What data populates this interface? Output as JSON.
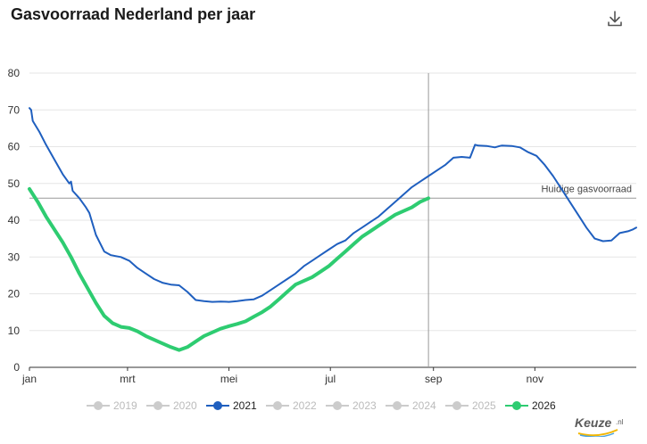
{
  "title": "Gasvoorraad Nederland per jaar",
  "icons": {
    "download": "download-icon",
    "brand": "keuze-logo"
  },
  "brand_text": "Keuze",
  "brand_suffix": ".nl",
  "colors": {
    "series_2021": "#1f5fbf",
    "series_2026": "#2ecc71",
    "inactive": "#cccccc",
    "reference_line": "#999999",
    "grid": "#e6e6e6"
  },
  "legend": [
    {
      "label": "2019",
      "active": false
    },
    {
      "label": "2020",
      "active": false
    },
    {
      "label": "2021",
      "active": true,
      "color": "#1f5fbf"
    },
    {
      "label": "2022",
      "active": false
    },
    {
      "label": "2023",
      "active": false
    },
    {
      "label": "2024",
      "active": false
    },
    {
      "label": "2025",
      "active": false
    },
    {
      "label": "2026",
      "active": true,
      "color": "#2ecc71"
    }
  ],
  "chart_data": {
    "type": "line",
    "title": "Gasvoorraad Nederland per jaar",
    "xlabel": "",
    "ylabel": "",
    "xlim": [
      0,
      365
    ],
    "ylim": [
      0,
      80
    ],
    "yticks": [
      0,
      10,
      20,
      30,
      40,
      50,
      60,
      70,
      80
    ],
    "xticks": [
      {
        "label": "jan",
        "day": 0
      },
      {
        "label": "mrt",
        "day": 59
      },
      {
        "label": "mei",
        "day": 120
      },
      {
        "label": "jul",
        "day": 181
      },
      {
        "label": "sep",
        "day": 243
      },
      {
        "label": "nov",
        "day": 304
      }
    ],
    "grid": true,
    "legend_position": "bottom",
    "reference_line": {
      "label": "Huidige gasvoorraad",
      "y": 46
    },
    "marker_line": {
      "x": 240
    },
    "series": [
      {
        "name": "2021",
        "color": "#1f5fbf",
        "x": [
          0,
          1,
          2,
          6,
          10,
          15,
          20,
          24,
          25,
          26,
          30,
          34,
          36,
          40,
          45,
          49,
          55,
          60,
          65,
          70,
          75,
          80,
          85,
          90,
          95,
          100,
          105,
          110,
          115,
          120,
          125,
          130,
          135,
          140,
          145,
          150,
          155,
          160,
          165,
          170,
          175,
          180,
          185,
          190,
          195,
          200,
          205,
          210,
          215,
          220,
          225,
          230,
          235,
          240,
          245,
          250,
          255,
          260,
          265,
          268,
          270,
          275,
          280,
          283,
          284,
          290,
          295,
          300,
          305,
          310,
          315,
          320,
          325,
          330,
          335,
          340,
          345,
          350,
          355,
          360,
          363,
          365
        ],
        "y": [
          70.5,
          70,
          67,
          64,
          60.5,
          56.5,
          52.5,
          50,
          50.5,
          48,
          46,
          43.5,
          42,
          36,
          31.5,
          30.5,
          30,
          29,
          27,
          25.5,
          24,
          23,
          22.5,
          22.3,
          20.5,
          18.3,
          18,
          17.8,
          17.9,
          17.8,
          18,
          18.3,
          18.5,
          19.5,
          21,
          22.5,
          24,
          25.5,
          27.5,
          29,
          30.5,
          32,
          33.5,
          34.5,
          36.5,
          38,
          39.5,
          41,
          43,
          45,
          47,
          49,
          50.5,
          52,
          53.5,
          55,
          57,
          57.2,
          57,
          60.5,
          60.3,
          60.2,
          59.8,
          60.2,
          60.3,
          60.2,
          59.8,
          58.5,
          57.5,
          55,
          52,
          48.5,
          45,
          41.5,
          38,
          35,
          34.3,
          34.5,
          36.5,
          37,
          37.5,
          38
        ]
      },
      {
        "name": "2026",
        "color": "#2ecc71",
        "x": [
          0,
          5,
          10,
          15,
          20,
          25,
          30,
          35,
          40,
          45,
          50,
          55,
          60,
          65,
          70,
          75,
          80,
          85,
          90,
          95,
          100,
          105,
          110,
          115,
          120,
          125,
          130,
          135,
          140,
          145,
          150,
          155,
          160,
          165,
          170,
          175,
          180,
          185,
          190,
          195,
          200,
          205,
          210,
          215,
          220,
          225,
          230,
          235,
          240
        ],
        "y": [
          48.5,
          45,
          41,
          37.5,
          34,
          30,
          25.5,
          21.5,
          17.5,
          14,
          12,
          11,
          10.7,
          9.8,
          8.5,
          7.5,
          6.5,
          5.5,
          4.7,
          5.5,
          7,
          8.5,
          9.5,
          10.5,
          11.2,
          11.8,
          12.5,
          13.8,
          15,
          16.5,
          18.5,
          20.5,
          22.5,
          23.5,
          24.5,
          26,
          27.5,
          29.5,
          31.5,
          33.5,
          35.5,
          37,
          38.5,
          40,
          41.5,
          42.5,
          43.5,
          45,
          46
        ]
      }
    ]
  }
}
